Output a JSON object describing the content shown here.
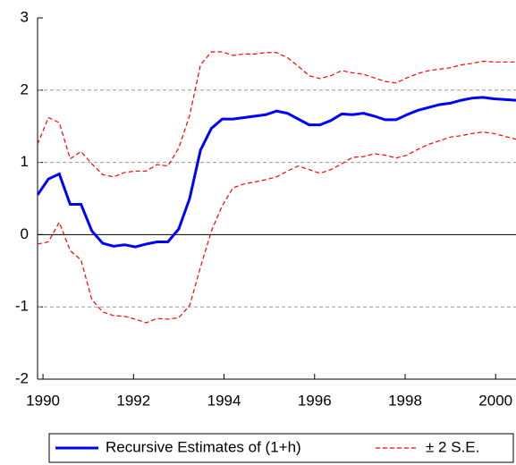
{
  "chart_data": {
    "type": "line",
    "x": [
      1989.88,
      1990.12,
      1990.36,
      1990.6,
      1990.84,
      1991.08,
      1991.32,
      1991.56,
      1991.8,
      1992.04,
      1992.28,
      1992.52,
      1992.76,
      1993.0,
      1993.24,
      1993.48,
      1993.72,
      1993.96,
      1994.2,
      1994.44,
      1994.68,
      1994.92,
      1995.16,
      1995.4,
      1995.64,
      1995.88,
      1996.12,
      1996.36,
      1996.6,
      1996.84,
      1997.08,
      1997.32,
      1997.56,
      1997.8,
      1998.04,
      1998.28,
      1998.52,
      1998.76,
      1999.0,
      1999.24,
      1999.48,
      1999.72,
      1999.96,
      2000.2,
      2000.45
    ],
    "series": [
      {
        "name": "Recursive Estimates of (1+h)",
        "color": "#0000ff",
        "values": [
          0.55,
          0.77,
          0.84,
          0.42,
          0.42,
          0.05,
          -0.12,
          -0.16,
          -0.14,
          -0.17,
          -0.13,
          -0.1,
          -0.1,
          0.08,
          0.5,
          1.17,
          1.47,
          1.6,
          1.6,
          1.62,
          1.64,
          1.66,
          1.71,
          1.68,
          1.6,
          1.52,
          1.52,
          1.58,
          1.67,
          1.66,
          1.68,
          1.64,
          1.59,
          1.59,
          1.66,
          1.72,
          1.76,
          1.8,
          1.82,
          1.86,
          1.89,
          1.9,
          1.88,
          1.87,
          1.86
        ]
      },
      {
        "name": "± 2 S.E.",
        "color": "#ff0000",
        "values": [
          1.25,
          1.62,
          1.55,
          1.05,
          1.15,
          0.98,
          0.83,
          0.8,
          0.86,
          0.88,
          0.88,
          0.97,
          0.95,
          1.2,
          1.65,
          2.35,
          2.53,
          2.53,
          2.48,
          2.5,
          2.5,
          2.52,
          2.52,
          2.45,
          2.33,
          2.2,
          2.16,
          2.2,
          2.27,
          2.24,
          2.22,
          2.17,
          2.12,
          2.1,
          2.17,
          2.23,
          2.27,
          2.29,
          2.31,
          2.35,
          2.37,
          2.4,
          2.39,
          2.39,
          2.39
        ],
        "lower": [
          -0.13,
          -0.1,
          0.17,
          -0.22,
          -0.35,
          -0.9,
          -1.07,
          -1.12,
          -1.13,
          -1.17,
          -1.22,
          -1.16,
          -1.17,
          -1.15,
          -0.98,
          -0.45,
          0.05,
          0.4,
          0.65,
          0.7,
          0.73,
          0.76,
          0.8,
          0.88,
          0.95,
          0.9,
          0.85,
          0.9,
          0.98,
          1.07,
          1.08,
          1.12,
          1.1,
          1.06,
          1.1,
          1.18,
          1.25,
          1.3,
          1.35,
          1.37,
          1.4,
          1.42,
          1.4,
          1.36,
          1.32
        ]
      }
    ],
    "xlim": [
      1989.88,
      2000.45
    ],
    "xticks": [
      1990,
      1992,
      1994,
      1996,
      1998,
      2000
    ],
    "ylim": [
      -2,
      3
    ],
    "yticks": [
      -2,
      -1,
      0,
      1,
      2,
      3
    ],
    "grid": true,
    "legend": "bottom"
  }
}
